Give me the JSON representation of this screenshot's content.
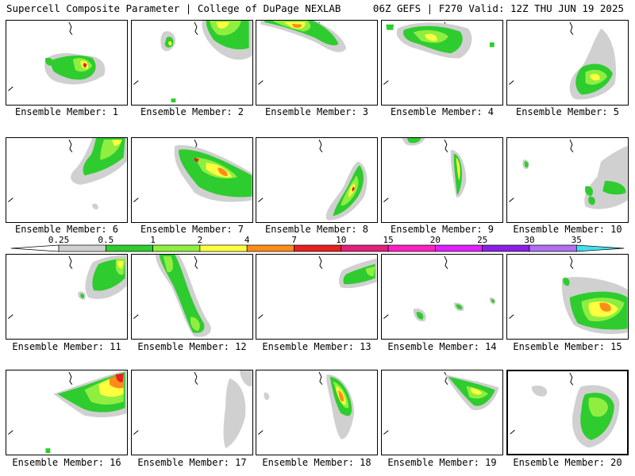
{
  "header": {
    "left": "Supercell Composite Parameter | College of DuPage NEXLAB",
    "right": "06Z GEFS | F270 Valid: 12Z THU JUN 19 2025"
  },
  "colorbar": {
    "ticks": [
      "0.25",
      "0.5",
      "1",
      "2",
      "4",
      "7",
      "10",
      "15",
      "20",
      "25",
      "30",
      "35"
    ],
    "colors": [
      "#d0d0d0",
      "#2ecc2e",
      "#90ee40",
      "#ffff40",
      "#ff8c1a",
      "#e82020",
      "#e0207a",
      "#ff20c0",
      "#e020ff",
      "#8a20e8",
      "#b070f0",
      "#40e0f0"
    ]
  },
  "panels": [
    {
      "label": "Ensemble Member: 1"
    },
    {
      "label": "Ensemble Member: 2"
    },
    {
      "label": "Ensemble Member: 3"
    },
    {
      "label": "Ensemble Member: 4"
    },
    {
      "label": "Ensemble Member: 5"
    },
    {
      "label": "Ensemble Member: 6"
    },
    {
      "label": "Ensemble Member: 7"
    },
    {
      "label": "Ensemble Member: 8"
    },
    {
      "label": "Ensemble Member: 9"
    },
    {
      "label": "Ensemble Member: 10"
    },
    {
      "label": "Ensemble Member: 11"
    },
    {
      "label": "Ensemble Member: 12"
    },
    {
      "label": "Ensemble Member: 13"
    },
    {
      "label": "Ensemble Member: 14"
    },
    {
      "label": "Ensemble Member: 15"
    },
    {
      "label": "Ensemble Member: 16"
    },
    {
      "label": "Ensemble Member: 17"
    },
    {
      "label": "Ensemble Member: 18"
    },
    {
      "label": "Ensemble Member: 19"
    },
    {
      "label": "Ensemble Member: 20"
    }
  ]
}
